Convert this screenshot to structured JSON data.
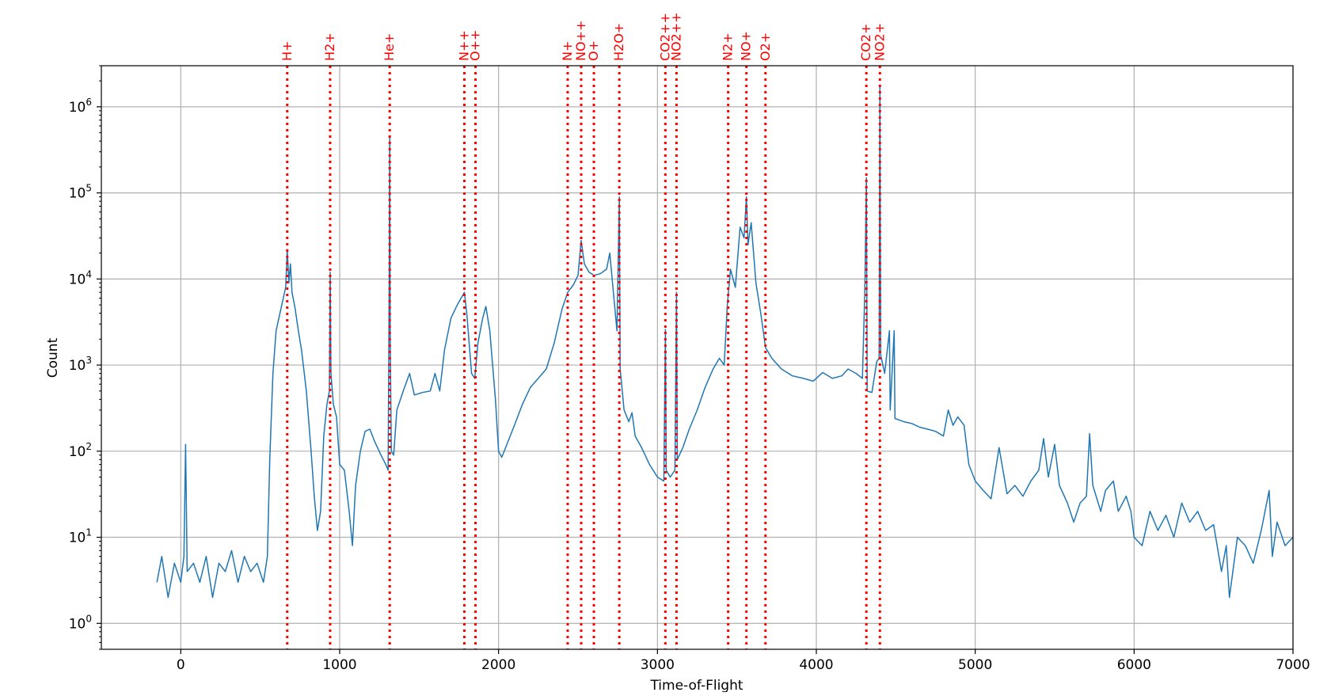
{
  "chart_data": {
    "type": "line",
    "title": "",
    "xlabel": "Time-of-Flight",
    "ylabel": "Count",
    "xlim": [
      -500,
      7000
    ],
    "ylim": [
      0.5,
      3000000
    ],
    "yscale": "log",
    "grid": true,
    "x_ticks": [
      0,
      1000,
      2000,
      3000,
      4000,
      5000,
      6000,
      7000
    ],
    "x_tick_labels": [
      "0",
      "1000",
      "2000",
      "3000",
      "4000",
      "5000",
      "6000",
      "7000"
    ],
    "y_tick_exponents": [
      0,
      1,
      2,
      3,
      4,
      5,
      6
    ],
    "y_tick_base": "10",
    "series_color": "#1f77b4",
    "peak_marker_color": "#ff0000",
    "peak_markers": [
      {
        "label": "H+",
        "x": 670
      },
      {
        "label": "H2+",
        "x": 940
      },
      {
        "label": "He+",
        "x": 1315
      },
      {
        "label": "N++",
        "x": 1785
      },
      {
        "label": "O++",
        "x": 1855
      },
      {
        "label": "N+",
        "x": 2435
      },
      {
        "label": "NO++",
        "x": 2520
      },
      {
        "label": "O+",
        "x": 2600
      },
      {
        "label": "H2O+",
        "x": 2760
      },
      {
        "label": "CO2++",
        "x": 3050
      },
      {
        "label": "NO2++",
        "x": 3120
      },
      {
        "label": "N2+",
        "x": 3445
      },
      {
        "label": "NO+",
        "x": 3560
      },
      {
        "label": "O2+",
        "x": 3680
      },
      {
        "label": "CO2+",
        "x": 4315
      },
      {
        "label": "NO2+",
        "x": 4400
      }
    ],
    "series": [
      {
        "points": [
          [
            -150,
            3
          ],
          [
            -120,
            6
          ],
          [
            -80,
            2
          ],
          [
            -40,
            5
          ],
          [
            0,
            3
          ],
          [
            20,
            6
          ],
          [
            30,
            120
          ],
          [
            40,
            4
          ],
          [
            80,
            5
          ],
          [
            120,
            3
          ],
          [
            160,
            6
          ],
          [
            200,
            2
          ],
          [
            240,
            5
          ],
          [
            280,
            4
          ],
          [
            320,
            7
          ],
          [
            360,
            3
          ],
          [
            400,
            6
          ],
          [
            440,
            4
          ],
          [
            480,
            5
          ],
          [
            520,
            3
          ],
          [
            545,
            6
          ],
          [
            560,
            80
          ],
          [
            580,
            800
          ],
          [
            600,
            2500
          ],
          [
            630,
            4500
          ],
          [
            660,
            8000
          ],
          [
            670,
            22000
          ],
          [
            680,
            9000
          ],
          [
            690,
            15000
          ],
          [
            700,
            7000
          ],
          [
            720,
            4500
          ],
          [
            740,
            2500
          ],
          [
            760,
            1500
          ],
          [
            790,
            500
          ],
          [
            820,
            100
          ],
          [
            840,
            30
          ],
          [
            860,
            12
          ],
          [
            880,
            20
          ],
          [
            900,
            150
          ],
          [
            920,
            350
          ],
          [
            935,
            500
          ],
          [
            940,
            12000
          ],
          [
            945,
            800
          ],
          [
            960,
            350
          ],
          [
            980,
            250
          ],
          [
            1000,
            70
          ],
          [
            1030,
            60
          ],
          [
            1060,
            20
          ],
          [
            1080,
            8
          ],
          [
            1100,
            40
          ],
          [
            1130,
            100
          ],
          [
            1160,
            170
          ],
          [
            1190,
            180
          ],
          [
            1220,
            130
          ],
          [
            1260,
            90
          ],
          [
            1290,
            70
          ],
          [
            1305,
            60
          ],
          [
            1312,
            12000
          ],
          [
            1315,
            450000
          ],
          [
            1318,
            2000
          ],
          [
            1325,
            100
          ],
          [
            1340,
            90
          ],
          [
            1360,
            300
          ],
          [
            1400,
            500
          ],
          [
            1440,
            800
          ],
          [
            1470,
            450
          ],
          [
            1520,
            480
          ],
          [
            1570,
            500
          ],
          [
            1600,
            800
          ],
          [
            1630,
            500
          ],
          [
            1660,
            1500
          ],
          [
            1700,
            3500
          ],
          [
            1740,
            5000
          ],
          [
            1785,
            7000
          ],
          [
            1800,
            4000
          ],
          [
            1830,
            800
          ],
          [
            1850,
            700
          ],
          [
            1870,
            1800
          ],
          [
            1900,
            3500
          ],
          [
            1920,
            4800
          ],
          [
            1945,
            2500
          ],
          [
            1980,
            400
          ],
          [
            2000,
            100
          ],
          [
            2020,
            85
          ],
          [
            2060,
            130
          ],
          [
            2100,
            200
          ],
          [
            2150,
            350
          ],
          [
            2200,
            550
          ],
          [
            2250,
            700
          ],
          [
            2300,
            900
          ],
          [
            2350,
            1800
          ],
          [
            2400,
            4500
          ],
          [
            2435,
            7000
          ],
          [
            2470,
            8500
          ],
          [
            2500,
            11000
          ],
          [
            2520,
            28000
          ],
          [
            2540,
            15000
          ],
          [
            2570,
            12000
          ],
          [
            2600,
            11000
          ],
          [
            2640,
            11500
          ],
          [
            2680,
            13000
          ],
          [
            2700,
            20000
          ],
          [
            2720,
            8000
          ],
          [
            2745,
            2500
          ],
          [
            2760,
            90000
          ],
          [
            2765,
            900
          ],
          [
            2790,
            300
          ],
          [
            2820,
            220
          ],
          [
            2840,
            280
          ],
          [
            2860,
            150
          ],
          [
            2900,
            110
          ],
          [
            2950,
            70
          ],
          [
            3000,
            50
          ],
          [
            3040,
            45
          ],
          [
            3050,
            2600
          ],
          [
            3055,
            60
          ],
          [
            3080,
            50
          ],
          [
            3110,
            60
          ],
          [
            3120,
            7000
          ],
          [
            3125,
            80
          ],
          [
            3160,
            110
          ],
          [
            3200,
            180
          ],
          [
            3250,
            300
          ],
          [
            3300,
            550
          ],
          [
            3350,
            900
          ],
          [
            3390,
            1200
          ],
          [
            3420,
            1000
          ],
          [
            3440,
            5000
          ],
          [
            3460,
            13000
          ],
          [
            3490,
            8000
          ],
          [
            3520,
            40000
          ],
          [
            3545,
            30000
          ],
          [
            3560,
            90000
          ],
          [
            3570,
            25000
          ],
          [
            3590,
            45000
          ],
          [
            3620,
            9000
          ],
          [
            3650,
            4000
          ],
          [
            3680,
            1600
          ],
          [
            3720,
            1200
          ],
          [
            3780,
            900
          ],
          [
            3850,
            750
          ],
          [
            3920,
            700
          ],
          [
            3980,
            650
          ],
          [
            4040,
            820
          ],
          [
            4100,
            700
          ],
          [
            4160,
            750
          ],
          [
            4200,
            900
          ],
          [
            4250,
            800
          ],
          [
            4290,
            700
          ],
          [
            4305,
            7000
          ],
          [
            4315,
            150000
          ],
          [
            4320,
            500
          ],
          [
            4350,
            480
          ],
          [
            4380,
            1100
          ],
          [
            4395,
            1200
          ],
          [
            4400,
            1700000
          ],
          [
            4405,
            1300
          ],
          [
            4430,
            800
          ],
          [
            4460,
            2500
          ],
          [
            4465,
            300
          ],
          [
            4490,
            2500
          ],
          [
            4495,
            240
          ],
          [
            4550,
            220
          ],
          [
            4600,
            210
          ],
          [
            4650,
            190
          ],
          [
            4700,
            180
          ],
          [
            4750,
            170
          ],
          [
            4800,
            150
          ],
          [
            4830,
            300
          ],
          [
            4860,
            200
          ],
          [
            4890,
            250
          ],
          [
            4930,
            200
          ],
          [
            4960,
            70
          ],
          [
            5000,
            45
          ],
          [
            5050,
            35
          ],
          [
            5100,
            28
          ],
          [
            5150,
            110
          ],
          [
            5200,
            32
          ],
          [
            5250,
            40
          ],
          [
            5300,
            30
          ],
          [
            5350,
            45
          ],
          [
            5400,
            60
          ],
          [
            5430,
            140
          ],
          [
            5460,
            50
          ],
          [
            5500,
            120
          ],
          [
            5530,
            40
          ],
          [
            5580,
            25
          ],
          [
            5620,
            15
          ],
          [
            5660,
            25
          ],
          [
            5700,
            30
          ],
          [
            5720,
            160
          ],
          [
            5740,
            40
          ],
          [
            5790,
            20
          ],
          [
            5820,
            35
          ],
          [
            5870,
            45
          ],
          [
            5900,
            20
          ],
          [
            5950,
            30
          ],
          [
            5980,
            20
          ],
          [
            6000,
            10
          ],
          [
            6050,
            8
          ],
          [
            6100,
            20
          ],
          [
            6150,
            12
          ],
          [
            6200,
            18
          ],
          [
            6250,
            10
          ],
          [
            6300,
            25
          ],
          [
            6350,
            15
          ],
          [
            6400,
            20
          ],
          [
            6450,
            12
          ],
          [
            6500,
            14
          ],
          [
            6550,
            4
          ],
          [
            6580,
            8
          ],
          [
            6600,
            2
          ],
          [
            6650,
            10
          ],
          [
            6700,
            8
          ],
          [
            6750,
            5
          ],
          [
            6800,
            12
          ],
          [
            6850,
            35
          ],
          [
            6870,
            6
          ],
          [
            6900,
            15
          ],
          [
            6950,
            8
          ],
          [
            7000,
            10
          ]
        ]
      }
    ]
  }
}
